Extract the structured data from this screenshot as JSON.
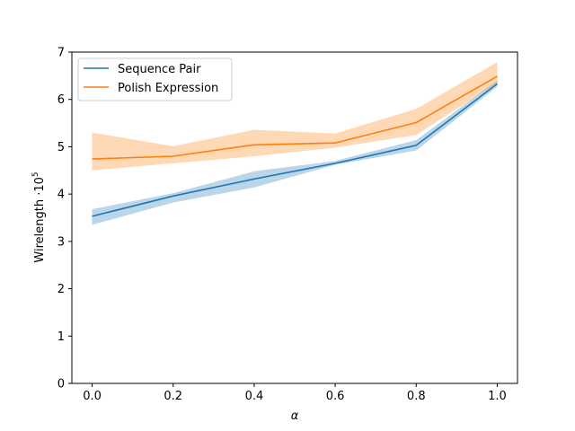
{
  "chart_data": {
    "type": "line",
    "xlabel": "α",
    "ylabel_text": "Wirelength ·10",
    "ylabel_exponent": "5",
    "xlim": [
      -0.05,
      1.05
    ],
    "ylim": [
      0,
      7
    ],
    "xticks": [
      0.0,
      0.2,
      0.4,
      0.6,
      0.8,
      1.0
    ],
    "xtick_labels": [
      "0.0",
      "0.2",
      "0.4",
      "0.6",
      "0.8",
      "1.0"
    ],
    "yticks": [
      0,
      1,
      2,
      3,
      4,
      5,
      6,
      7
    ],
    "ytick_labels": [
      "0",
      "1",
      "2",
      "3",
      "4",
      "5",
      "6",
      "7"
    ],
    "grid": false,
    "legend_position": "top-left",
    "x": [
      0.0,
      0.2,
      0.4,
      0.6,
      0.8,
      1.0
    ],
    "series": [
      {
        "name": "Sequence Pair",
        "color": "#1f77b4",
        "values": [
          3.53,
          3.96,
          4.32,
          4.65,
          5.03,
          6.33
        ],
        "lower": [
          3.35,
          3.82,
          4.14,
          4.62,
          4.92,
          6.27
        ],
        "upper": [
          3.68,
          4.02,
          4.48,
          4.7,
          5.14,
          6.4
        ]
      },
      {
        "name": "Polish Expression",
        "color": "#ff7f0e",
        "values": [
          4.74,
          4.8,
          5.04,
          5.08,
          5.51,
          6.49
        ],
        "lower": [
          4.5,
          4.65,
          4.8,
          4.98,
          5.25,
          6.35
        ],
        "upper": [
          5.3,
          5.01,
          5.36,
          5.28,
          5.8,
          6.79
        ]
      }
    ]
  }
}
